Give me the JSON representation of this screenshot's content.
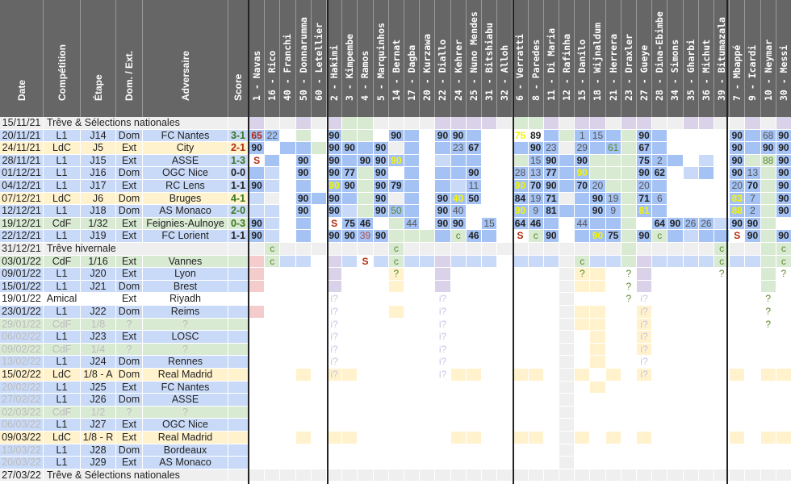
{
  "headers": {
    "date": "Date",
    "competition": "Compétition",
    "stage": "Étape",
    "home_away": "Dom. / Ext.",
    "opponent": "Adversaire",
    "score": "Score"
  },
  "players": [
    "1 - Navas",
    "16 - Rico",
    "40 - Franchi",
    "50 - Donnarumma",
    "60 - Letellier",
    "2 - Hakimi",
    "3 - Kimpembe",
    "4 - Ramos",
    "5 - Marquinhos",
    "14 - Bernat",
    "17 - Dagba",
    "20 - Kurzawa",
    "22 - Diallo",
    "24 - Kehrer",
    "25 - Nuno Mendes",
    "31 - Bitshiabu",
    "32 - Alloh",
    "6 - Verratti",
    "8 - Paredes",
    "11 - Di Maria",
    "12 - Rafinha",
    "15 - Danilo",
    "18 - Wijnaldum",
    "21 - Herrera",
    "23 - Draxler",
    "27 - Gueye",
    "28 - Dina-Ebimbe",
    "34 - Simons",
    "35 - Gharbi",
    "36 - Michut",
    "39 - Bitumazala",
    "7 - Mbappé",
    "9 - Icardi",
    "10 - Neymar",
    "30 - Messi"
  ],
  "colors": {
    "b": "#a4c2f4",
    "l": "#c9daf8",
    "g": "#d9ead3",
    "p": "#d9d2e9",
    "y": "#fff2cc",
    "r": "#f4cccc",
    "e": "#efefef",
    "w": "#ffffff",
    "score_win": "#38761d",
    "score_loss": "#b02a10"
  },
  "rows": [
    {
      "date": "15/11/21",
      "break": "Trêve & Sélections nationales",
      "cells": "p e e p e p g g e e e e p p p p e g g p e p p e p p e e p p e e p e p"
    },
    {
      "date": "20/11/21",
      "comp": "L1",
      "stage": "J14",
      "ha": "Dom",
      "opp": "FC Nantes",
      "score": "3-1",
      "res": "win",
      "cells": "b:$65 b:~22 w g w b:90 g g w b:90 b w b:90 b:90 b w w w:!75 w:89 b g b:~1 b:~15 b g b:90 b w w w w b:90 b b:~68 b:90"
    },
    {
      "date": "24/11/21",
      "comp": "LdC",
      "stage": "J5",
      "ha": "Ext",
      "opp": "City",
      "score": "2-1",
      "res": "loss",
      "cells": "b:90 w b b g b:90 b:90 b b:90 e b w b b:~23 b:67 w w b b:90 b:~23 e b:~29 b b:^61 g b:67 b w w w w b:90 b b:90 b:90"
    },
    {
      "date": "28/11/21",
      "comp": "L1",
      "stage": "J15",
      "ha": "Ext",
      "opp": "ASSE",
      "score": "1-3",
      "res": "win",
      "cells": "w:$S b w b:90 w b:90 b b:90 b:90 b:!90 b w l b b w w g b:~15 b:90 b b:90 g g g b:75 b:~2 b w l w b:90 g g:^88 b:90"
    },
    {
      "date": "01/12/21",
      "comp": "L1",
      "stage": "J16",
      "ha": "Dom",
      "opp": "OGC Nice",
      "score": "0-0",
      "res": "draw",
      "cells": "b l w b:90 w b:90 b:77 g b:90 w b w b b b:90 w w b:~28 b:~13 b:77 b b:!90 g g g b:90 b:62 w l b w b:90 b:~13 g b:90"
    },
    {
      "date": "04/12/21",
      "comp": "L1",
      "stage": "J17",
      "ha": "Ext",
      "opp": "RC Lens",
      "score": "1-1",
      "res": "draw",
      "cells": "b:90 l w b w b:!90 b:90 g b:90 b:79 b w b l b:~11 w w b:!90 b:70 b:90 b b:70 b:~20 g g b:~20 b w w w w b:~20 b:70 g b:90"
    },
    {
      "date": "07/12/21",
      "comp": "LdC",
      "stage": "J6",
      "ha": "Dom",
      "opp": "Bruges",
      "score": "4-1",
      "res": "win",
      "cells": "l e w b:90 b b:90 b g b:90 e b w b:90 b:!40 b:50 w w b:84 b:~19 b:71 e b b:90 b:~19 g b:71 b:~6 w w w w b:!83 b:~7 g b:90"
    },
    {
      "date": "12/12/21",
      "comp": "L1",
      "stage": "J18",
      "ha": "Dom",
      "opp": "AS Monaco",
      "score": "2-0",
      "res": "win",
      "cells": "l l w b:90 w b:90 l g b:90 b:^50 b w b:90 b:~40 w w w b:!90 b:~9 b:81 b b b:90 b:~9 g b:!81 b w w w w b:!88 b:~2 g b:90"
    },
    {
      "date": "19/12/21",
      "comp": "CdF",
      "stage": "1/32",
      "ha": "Ext",
      "opp": "Feignies-Aulnoye",
      "score": "0-3",
      "res": "win",
      "cells": "b:90 l w b w w:$S b:75 b:46 w g b:~44 w b:90 b:90 w b:~15 w b:64 b:46 b w b:~44 b b g w b:64 b:90 b:~26 b:~26 l b:90 b:90 g w"
    },
    {
      "date": "22/12/21",
      "comp": "L1",
      "stage": "J19",
      "ha": "Ext",
      "opp": "FC Lorient",
      "score": "1-1",
      "res": "draw",
      "cells": "b:90 l w b w b:90 b:90 b:%39 b:90 g g g b g:^c b:46 b w w:$S g:^c b:90 w b b:!90 b:75 g b:90 g:^c b l b b w:$S b:90 g b:90"
    },
    {
      "date": "31/12/21",
      "break": "Trêve hivernale",
      "cells": "e g:^c e e e e e e e g:^c e e e e e e e e e e e e e e g e e e e e g:^c e e g g:^c"
    },
    {
      "date": "03/01/22",
      "comp": "CdF",
      "stage": "1/16",
      "ha": "Ext",
      "opp": "Vannes",
      "cells": "r g:^c l l w p l w:$S l g:^c l l p l l l w l l l e g:^c l l g p l l l l g:^c l l g g:^c"
    },
    {
      "date": "09/01/22",
      "comp": "L1",
      "stage": "J20",
      "ha": "Ext",
      "opp": "Lyon",
      "cells": "r w w w w p w w w y:^? w w p w w w w w w w e y:^? y w w:^? p w w w w w:^? w w g w:^?"
    },
    {
      "date": "15/01/22",
      "comp": "L1",
      "stage": "J21",
      "ha": "Dom",
      "opp": "Brest",
      "cells": "r w w w w p w w w y w w p w w w w w w w e y y w w:^? p w w w w w w w g w"
    },
    {
      "date": "19/01/22",
      "comp": "Amical",
      "stage": "",
      "ha": "Ext",
      "opp": "Riyadh",
      "cells": "w w w w w w:#i? w w w w w w w:#i? w w w w w w w e w w w w:^? w:#i? w w w w w w w w:^? w"
    },
    {
      "date": "23/01/22",
      "comp": "L1",
      "stage": "J22",
      "ha": "Dom",
      "opp": "Reims",
      "cells": "r w w w w w:#i? w w w y w w w:#i? w w w w w w w e y y w w y:#i? w w w w w w w w:^? w"
    },
    {
      "date": "29/01/22",
      "comp": "CdF",
      "stage": "1/8",
      "ha": "?",
      "opp": "?",
      "faded": "all",
      "cells": "w w w w w w:#i? w w w w w w w:#i? w w w w w w w e y y w w y:#i? w w w w w w w w:^? w"
    },
    {
      "date": "06/02/22",
      "comp": "L1",
      "stage": "J23",
      "ha": "Ext",
      "opp": "LOSC",
      "faded": "date",
      "cells": "w w w w w w:#i? w w w w w w w:#i? w w w w w w w e w y w w y:#i? w w w w w w w w w"
    },
    {
      "date": "09/02/22",
      "comp": "CdF",
      "stage": "1/4",
      "ha": "?",
      "opp": "?",
      "faded": "all",
      "cells": "w w w w w w:#i? w w w w w w w:#i? w w w w w w w e w y w w y:#i? w w w w w w w w w"
    },
    {
      "date": "13/02/22",
      "comp": "L1",
      "stage": "J24",
      "ha": "Dom",
      "opp": "Rennes",
      "faded": "date",
      "cells": "w w w w w w:#i? w w w w w w w:#i? w w w w w w w e w y w w w:#i? w w w w w w w w w"
    },
    {
      "date": "15/02/22",
      "comp": "LdC",
      "stage": "1/8 - A",
      "ha": "Dom",
      "opp": "Real Madrid",
      "cells": "w w w y w y:#i? y w w w w w w:#i? y y w w y y w e y w y w y:#i? w w w w w y w y y"
    },
    {
      "date": "20/02/22",
      "comp": "L1",
      "stage": "J25",
      "ha": "Ext",
      "opp": "FC Nantes",
      "faded": "date",
      "cells": "w w w w w w w w w w w w w w w w w w w w e w y w w w w w w w w w w w w"
    },
    {
      "date": "27/02/22",
      "comp": "L1",
      "stage": "J26",
      "ha": "Dom",
      "opp": "ASSE",
      "faded": "date",
      "cells": "w w w w w w w w w w w w w w w w w w w w e w w w w w w w w w w w w w w"
    },
    {
      "date": "02/03/22",
      "comp": "CdF",
      "stage": "1/2",
      "ha": "?",
      "opp": "?",
      "faded": "all",
      "cells": "w w w w w w w w w w w w w w w w w w w w e w w w w w w w w w w w w w w"
    },
    {
      "date": "06/03/22",
      "comp": "L1",
      "stage": "J27",
      "ha": "Ext",
      "opp": "OGC Nice",
      "faded": "date",
      "cells": "w w w w w w w w w w w w w w w w w w w w e w w w w w w w w w w w w w w"
    },
    {
      "date": "09/03/22",
      "comp": "LdC",
      "stage": "1/8 - R",
      "ha": "Ext",
      "opp": "Real Madrid",
      "cells": "w w w y w y y w w w w w w y y w w y y w e y w y w y w w w w w y w y y"
    },
    {
      "date": "13/03/22",
      "comp": "L1",
      "stage": "J28",
      "ha": "Dom",
      "opp": "Bordeaux",
      "faded": "date",
      "cells": "w w w w w w w w w w w w w w w w w w w w e w w w w w w w w w w w w w w"
    },
    {
      "date": "20/03/22",
      "comp": "L1",
      "stage": "J29",
      "ha": "Ext",
      "opp": "AS Monaco",
      "faded": "date",
      "cells": "w w w w w w w w w w w w w w w w w w w w e w w w w w w w w w w w w w w"
    },
    {
      "date": "27/03/22",
      "break": "Trêve & Sélections nationales",
      "cells": "e e e e e e e e e e e e e e e e e e e e e e e e e e e e e e e e e e e"
    }
  ]
}
